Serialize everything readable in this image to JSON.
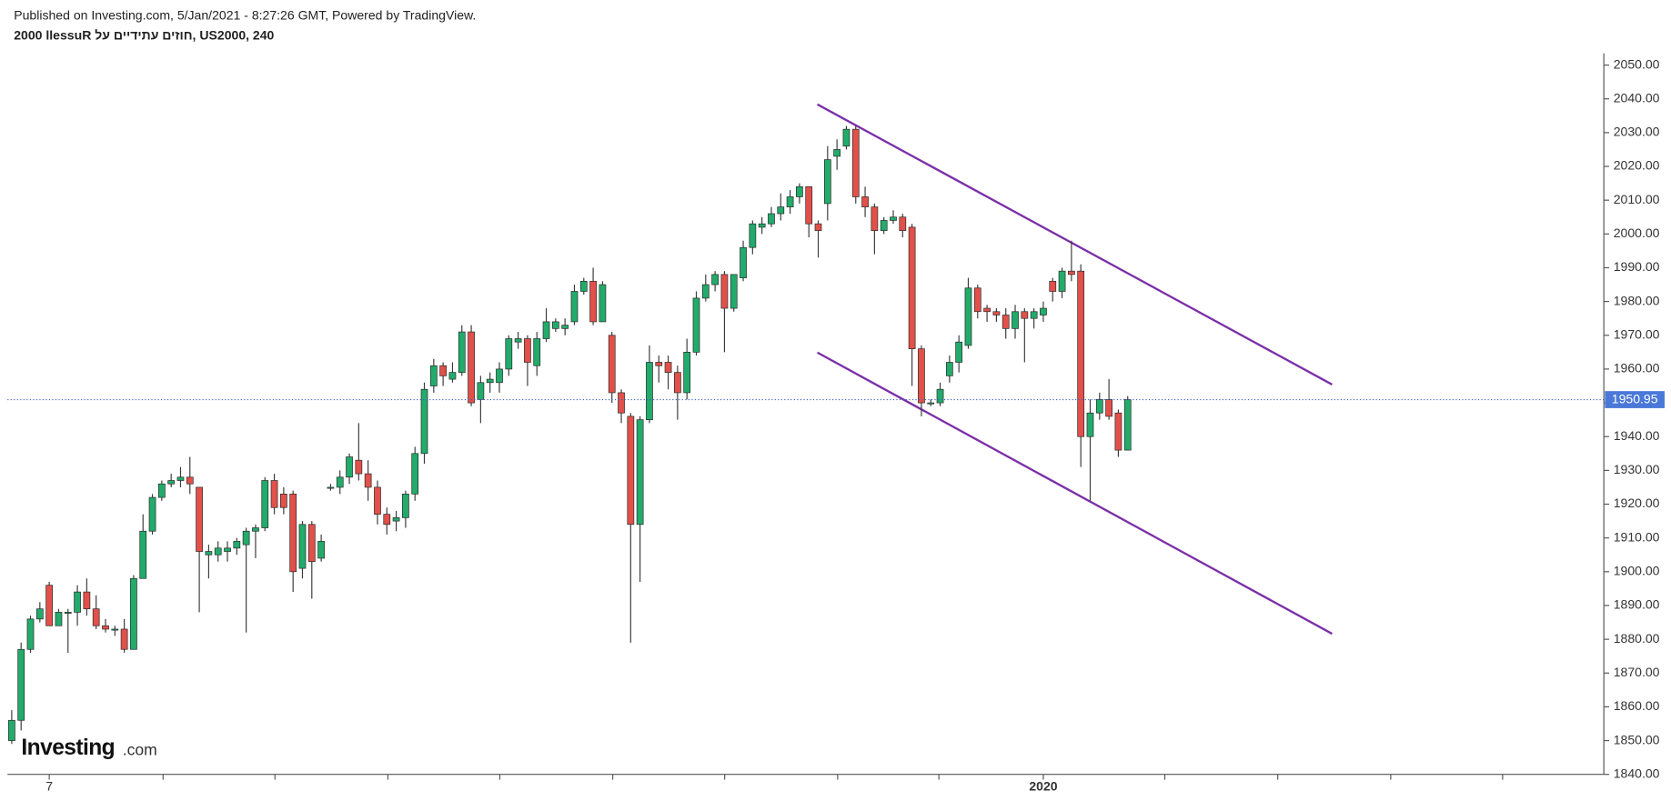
{
  "header": {
    "published": "Published on Investing.com, 5/Jan/2021 - 8:27:26 GMT, Powered by TradingView.",
    "title": "2000 llessuR חוזים עתידיים על, US2000, 240"
  },
  "logo": {
    "brand": "Investing",
    "suffix": ".com"
  },
  "chart_data": {
    "type": "candlestick",
    "up_color": "#22ab6b",
    "down_color": "#e2504a",
    "grid": false,
    "categories": [
      null,
      null,
      null,
      null,
      "7",
      null,
      null,
      null,
      null,
      null,
      null,
      null,
      null,
      null,
      null,
      null,
      null,
      null,
      null,
      null,
      null,
      null,
      null,
      null,
      null,
      null,
      null,
      null,
      null,
      null,
      null,
      null,
      null,
      null,
      null,
      null,
      null,
      null,
      null,
      null,
      null,
      null,
      null,
      null,
      null,
      null,
      null,
      null,
      null,
      null,
      null,
      null,
      null,
      null,
      null,
      null,
      null,
      null,
      null,
      null,
      null,
      null,
      null,
      null,
      null,
      null,
      null,
      null,
      null,
      null,
      null,
      null,
      null,
      null,
      null,
      null,
      null,
      null,
      null,
      null,
      null,
      null,
      null,
      null,
      null,
      null,
      null,
      null,
      null,
      null,
      null,
      null,
      null,
      null,
      null,
      null,
      null,
      null,
      null,
      null,
      null,
      null,
      null,
      null,
      null,
      null,
      null,
      null,
      null,
      null,
      "2020",
      null,
      null,
      null,
      null,
      null,
      null,
      null,
      null,
      null
    ],
    "open": [
      1850,
      1856,
      1877,
      1886,
      1896,
      1884,
      1888,
      1888,
      1894,
      1889,
      1884,
      1883,
      1883,
      1877,
      1898,
      1912,
      1922,
      1926,
      1927,
      1928,
      1925,
      1905,
      1905,
      1906,
      1907,
      1908,
      1912,
      1913,
      1927,
      1923,
      1923,
      1901,
      1914,
      1904,
      1925,
      1925,
      1928,
      1933,
      1929,
      1925,
      1917,
      1915,
      1916,
      1923,
      1935,
      1955,
      1961,
      1957,
      1959,
      1971,
      1951,
      1956,
      1956,
      1960,
      1968,
      1969,
      1961,
      1969,
      1972,
      1972,
      1974,
      1983,
      1986,
      1974,
      1970,
      1953,
      1946,
      1914,
      1945,
      1962,
      1962,
      1959,
      1953,
      1965,
      1981,
      1985,
      1988,
      1978,
      1987,
      1996,
      2002,
      2003,
      2006,
      2008,
      2011,
      2014,
      2003,
      2009,
      2023,
      2026,
      2031,
      2011,
      2008,
      2001,
      2004,
      2005,
      2002,
      1966,
      1950,
      1950,
      1958,
      1962,
      1967,
      1984,
      1978,
      1977,
      1976,
      1972,
      1977,
      1975,
      1976,
      1986,
      1983,
      1989,
      1989,
      1940,
      1947,
      1951,
      1947,
      1936
    ],
    "high": [
      1859,
      1879,
      1887,
      1891,
      1897,
      1889,
      1889,
      1896,
      1898,
      1893,
      1886,
      1884,
      1886,
      1899,
      1917,
      1923,
      1927,
      1929,
      1931,
      1934,
      1925,
      1908,
      1909,
      1909,
      1910,
      1913,
      1914,
      1928,
      1929,
      1925,
      1924,
      1915,
      1915,
      1911,
      1926,
      1930,
      1935,
      1944,
      1933,
      1927,
      1919,
      1918,
      1924,
      1937,
      1956,
      1963,
      1962,
      1962,
      1973,
      1973,
      1958,
      1959,
      1962,
      1970,
      1971,
      1970,
      1971,
      1978,
      1975,
      1975,
      1985,
      1987,
      1990,
      1986,
      1971,
      1954,
      1947,
      1946,
      1967,
      1964,
      1964,
      1961,
      1969,
      1983,
      1988,
      1989,
      1989,
      1988,
      1998,
      2004,
      2005,
      2008,
      2012,
      2013,
      2015,
      2014,
      2004,
      2026,
      2028,
      2032,
      2032,
      2014,
      2009,
      2005,
      2007,
      2006,
      2003,
      1967,
      1951,
      1956,
      1964,
      1970,
      1987,
      1985,
      1979,
      1978,
      1978,
      1979,
      1978,
      1978,
      1980,
      1987,
      1990,
      1998,
      1991,
      1951,
      1953,
      1957,
      1948,
      1952
    ],
    "low": [
      1849,
      1853,
      1876,
      1885,
      1884,
      1884,
      1876,
      1884,
      1887,
      1883,
      1882,
      1881,
      1876,
      1877,
      1898,
      1911,
      1921,
      1925,
      1925,
      1923,
      1888,
      1898,
      1903,
      1903,
      1905,
      1882,
      1904,
      1912,
      1917,
      1917,
      1894,
      1898,
      1892,
      1903,
      1924,
      1923,
      1926,
      1927,
      1921,
      1914,
      1911,
      1912,
      1913,
      1921,
      1932,
      1953,
      1955,
      1956,
      1958,
      1949,
      1944,
      1953,
      1953,
      1958,
      1966,
      1955,
      1958,
      1968,
      1971,
      1970,
      1973,
      1982,
      1973,
      1974,
      1950,
      1944,
      1879,
      1897,
      1944,
      1956,
      1954,
      1945,
      1951,
      1964,
      1980,
      1983,
      1965,
      1977,
      1986,
      1994,
      2000,
      2002,
      2004,
      2006,
      2009,
      1999,
      1993,
      2004,
      2019,
      2025,
      2009,
      2005,
      1994,
      2000,
      2003,
      1999,
      1955,
      1946,
      1949,
      1949,
      1956,
      1959,
      1966,
      1975,
      1974,
      1974,
      1969,
      1969,
      1962,
      1972,
      1974,
      1980,
      1981,
      1986,
      1931,
      1921,
      1945,
      1945,
      1934,
      1936
    ],
    "close": [
      1856,
      1877,
      1886,
      1889,
      1884,
      1888,
      1888,
      1894,
      1889,
      1884,
      1883,
      1883,
      1877,
      1898,
      1912,
      1922,
      1926,
      1927,
      1928,
      1926,
      1906,
      1906,
      1907,
      1907,
      1909,
      1912,
      1913,
      1927,
      1919,
      1919,
      1900,
      1914,
      1903,
      1909,
      1925,
      1928,
      1934,
      1929,
      1925,
      1917,
      1914,
      1916,
      1923,
      1935,
      1954,
      1961,
      1958,
      1959,
      1971,
      1950,
      1956,
      1957,
      1960,
      1969,
      1969,
      1962,
      1969,
      1974,
      1974,
      1973,
      1983,
      1986,
      1974,
      1985,
      1953,
      1947,
      1914,
      1945,
      1962,
      1961,
      1959,
      1953,
      1965,
      1981,
      1985,
      1988,
      1978,
      1988,
      1996,
      2003,
      2003,
      2006,
      2008,
      2011,
      2014,
      2003,
      2001,
      2022,
      2025,
      2031,
      2011,
      2008,
      2001,
      2004,
      2005,
      2001,
      1966,
      1950,
      1950,
      1954,
      1962,
      1968,
      1984,
      1977,
      1977,
      1976,
      1972,
      1977,
      1975,
      1977,
      1978,
      1983,
      1989,
      1988,
      1940,
      1947,
      1951,
      1946,
      1936,
      1950.95
    ],
    "last_price": 1950.95,
    "ylim": [
      1840,
      2053.5
    ],
    "yticks": [
      {
        "value": 1840,
        "label": "1840.00"
      },
      {
        "value": 1850,
        "label": "1850.00"
      },
      {
        "value": 1860,
        "label": "1860.00"
      },
      {
        "value": 1870,
        "label": "1870.00"
      },
      {
        "value": 1880,
        "label": "1880.00"
      },
      {
        "value": 1890,
        "label": "1890.00"
      },
      {
        "value": 1900,
        "label": "1900.00"
      },
      {
        "value": 1910,
        "label": "1910.00"
      },
      {
        "value": 1920,
        "label": "1920.00"
      },
      {
        "value": 1930,
        "label": "1930.00"
      },
      {
        "value": 1940,
        "label": "1940.00"
      },
      {
        "value": 1950,
        "label": "1950.00"
      },
      {
        "value": 1960,
        "label": "1960.00"
      },
      {
        "value": 1970,
        "label": "1970.00"
      },
      {
        "value": 1980,
        "label": "1980.00"
      },
      {
        "value": 1990,
        "label": "1990.00"
      },
      {
        "value": 2000,
        "label": "2000.00"
      },
      {
        "value": 2010,
        "label": "2010.00"
      },
      {
        "value": 2020,
        "label": "2020.00"
      },
      {
        "value": 2030,
        "label": "2030.00"
      },
      {
        "value": 2040,
        "label": "2040.00"
      },
      {
        "value": 2050,
        "label": "2050.00"
      }
    ]
  }
}
